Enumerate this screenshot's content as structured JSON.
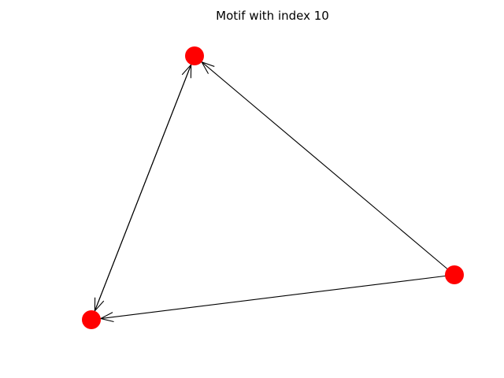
{
  "title": "Motif with index 10",
  "graph": {
    "node_color": "#ff0000",
    "edge_color": "#000000",
    "nodes": [
      {
        "id": "top"
      },
      {
        "id": "bottom-left"
      },
      {
        "id": "right"
      }
    ],
    "edges": [
      {
        "source": "right",
        "target": "top"
      },
      {
        "source": "right",
        "target": "bottom-left"
      },
      {
        "source": "top",
        "target": "bottom-left"
      },
      {
        "source": "bottom-left",
        "target": "top"
      }
    ]
  }
}
